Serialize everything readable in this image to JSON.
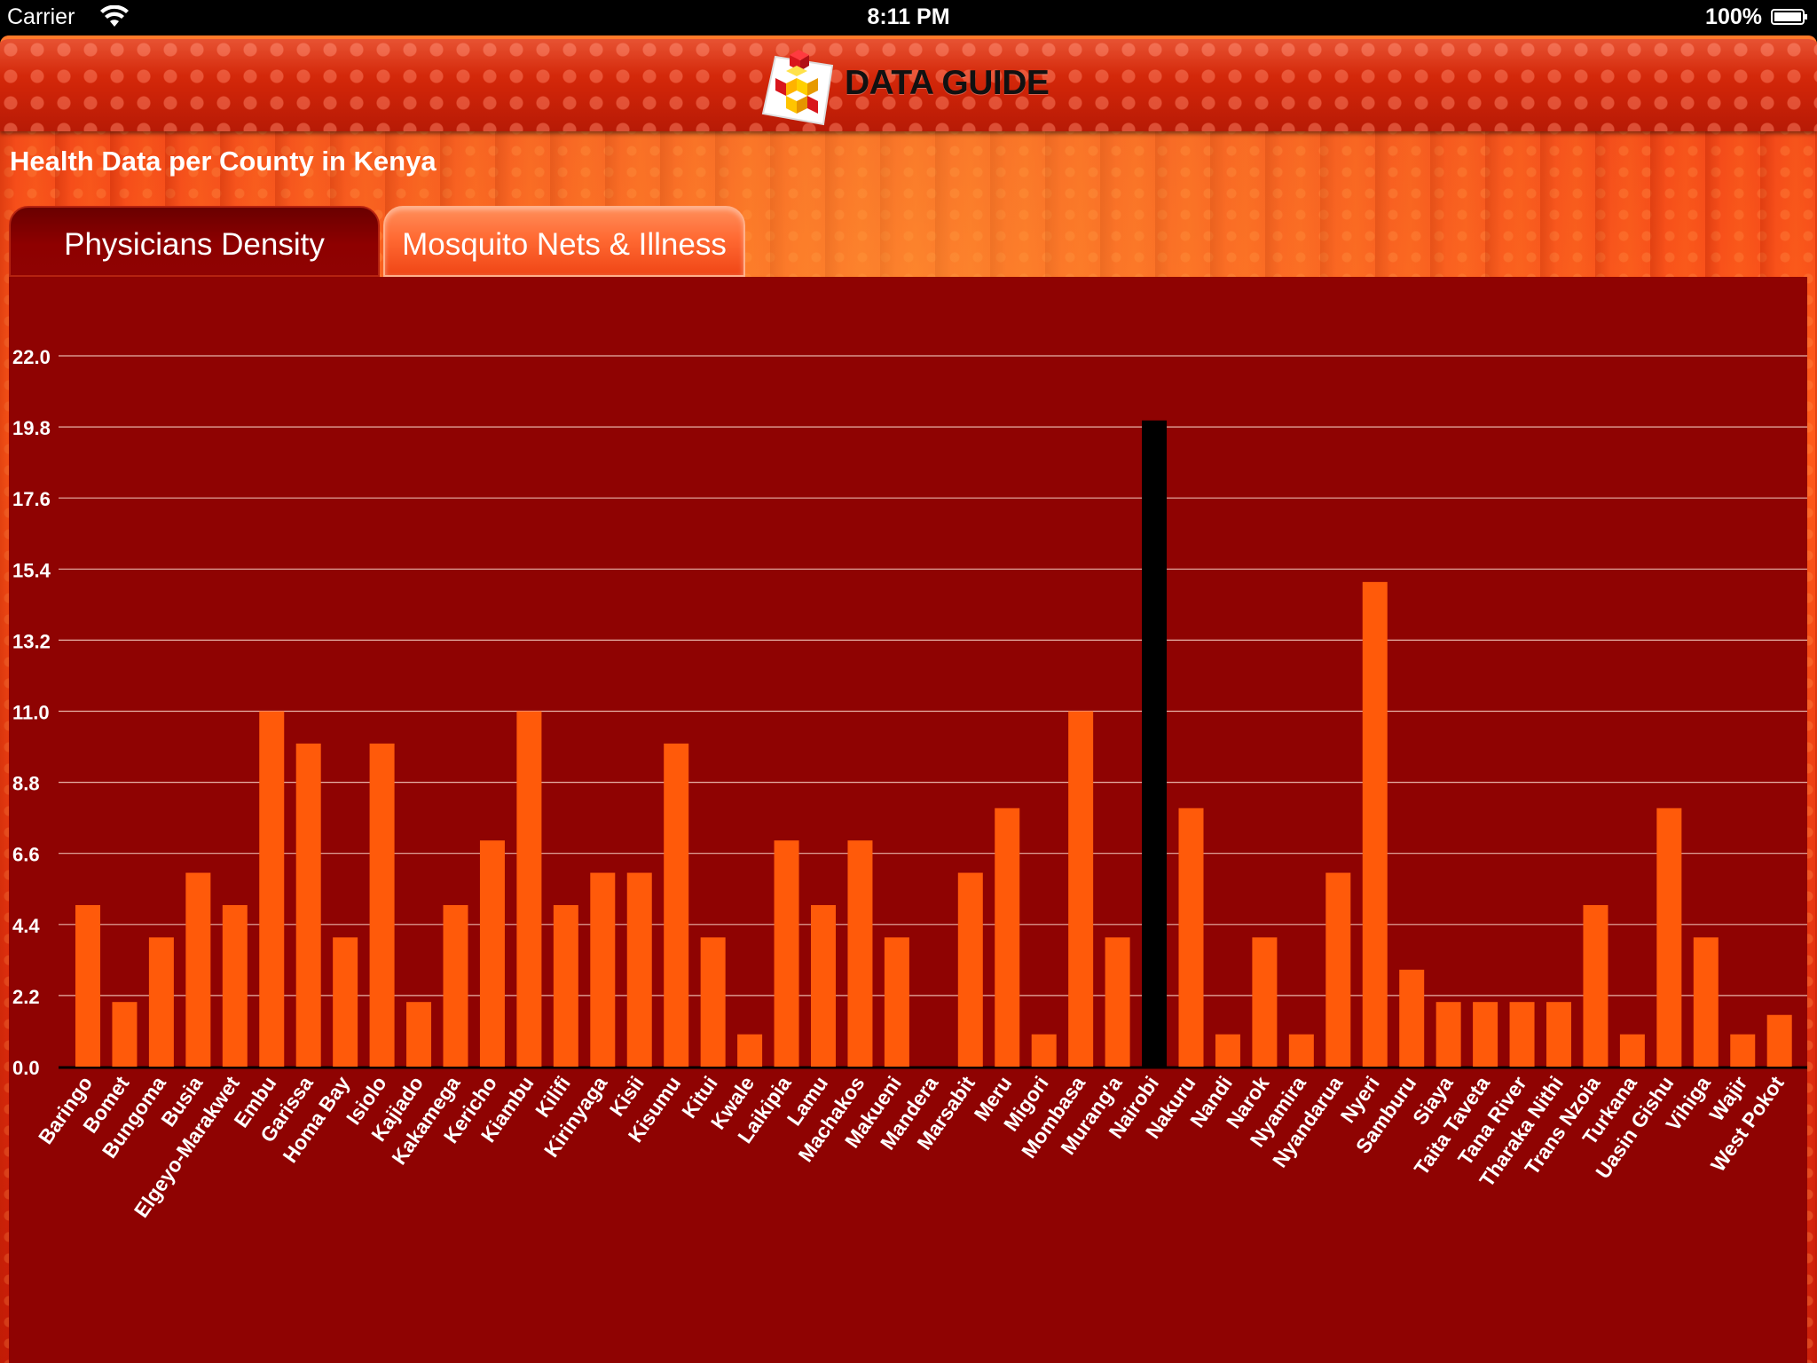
{
  "status_bar": {
    "carrier": "Carrier",
    "time": "8:11 PM",
    "battery_pct": "100%",
    "wifi_icon": "wifi-icon",
    "battery_icon": "battery-icon"
  },
  "header": {
    "logo_icon": "stacked-cubes-logo-icon",
    "brand": "DATA GUIDE"
  },
  "page_title": "Health Data per County in Kenya",
  "tabs": [
    {
      "label": "Physicians Density",
      "active": true
    },
    {
      "label": "Mosquito Nets & Illness",
      "active": false
    }
  ],
  "colors": {
    "bar": "#ff5a0a",
    "bar_selected": "#000000",
    "chart_background": "#8f0302",
    "gridline": "#e8b3a8",
    "tick_text": "#ffffff"
  },
  "chart_data": {
    "type": "bar",
    "title": "",
    "xlabel": "",
    "ylabel": "",
    "ylim": [
      0,
      22
    ],
    "yticks": [
      "0.0",
      "2.2",
      "4.4",
      "6.6",
      "8.8",
      "11.0",
      "13.2",
      "15.4",
      "17.6",
      "19.8",
      "22.0"
    ],
    "grid": true,
    "selected_category": "Nairobi",
    "categories": [
      "Baringo",
      "Bomet",
      "Bungoma",
      "Busia",
      "Elgeyo-Marakwet",
      "Embu",
      "Garissa",
      "Homa Bay",
      "Isiolo",
      "Kajiado",
      "Kakamega",
      "Kericho",
      "Kiambu",
      "Kilifi",
      "Kirinyaga",
      "Kisii",
      "Kisumu",
      "Kitui",
      "Kwale",
      "Laikipia",
      "Lamu",
      "Machakos",
      "Makueni",
      "Mandera",
      "Marsabit",
      "Meru",
      "Migori",
      "Mombasa",
      "Murang'a",
      "Nairobi",
      "Nakuru",
      "Nandi",
      "Narok",
      "Nyamira",
      "Nyandarua",
      "Nyeri",
      "Samburu",
      "Siaya",
      "Taita Taveta",
      "Tana River",
      "Tharaka Nithi",
      "Trans Nzoia",
      "Turkana",
      "Uasin Gishu",
      "Vihiga",
      "Wajir",
      "West Pokot"
    ],
    "values": [
      5,
      2,
      4,
      6,
      5,
      11,
      10,
      4,
      10,
      2,
      5,
      7,
      11,
      5,
      6,
      6,
      10,
      4,
      1,
      7,
      5,
      7,
      4,
      0,
      6,
      8,
      1,
      11,
      4,
      20,
      8,
      1,
      4,
      1,
      6,
      15,
      3,
      2,
      2,
      2,
      2,
      5,
      1,
      8,
      4,
      1,
      1.6
    ]
  }
}
